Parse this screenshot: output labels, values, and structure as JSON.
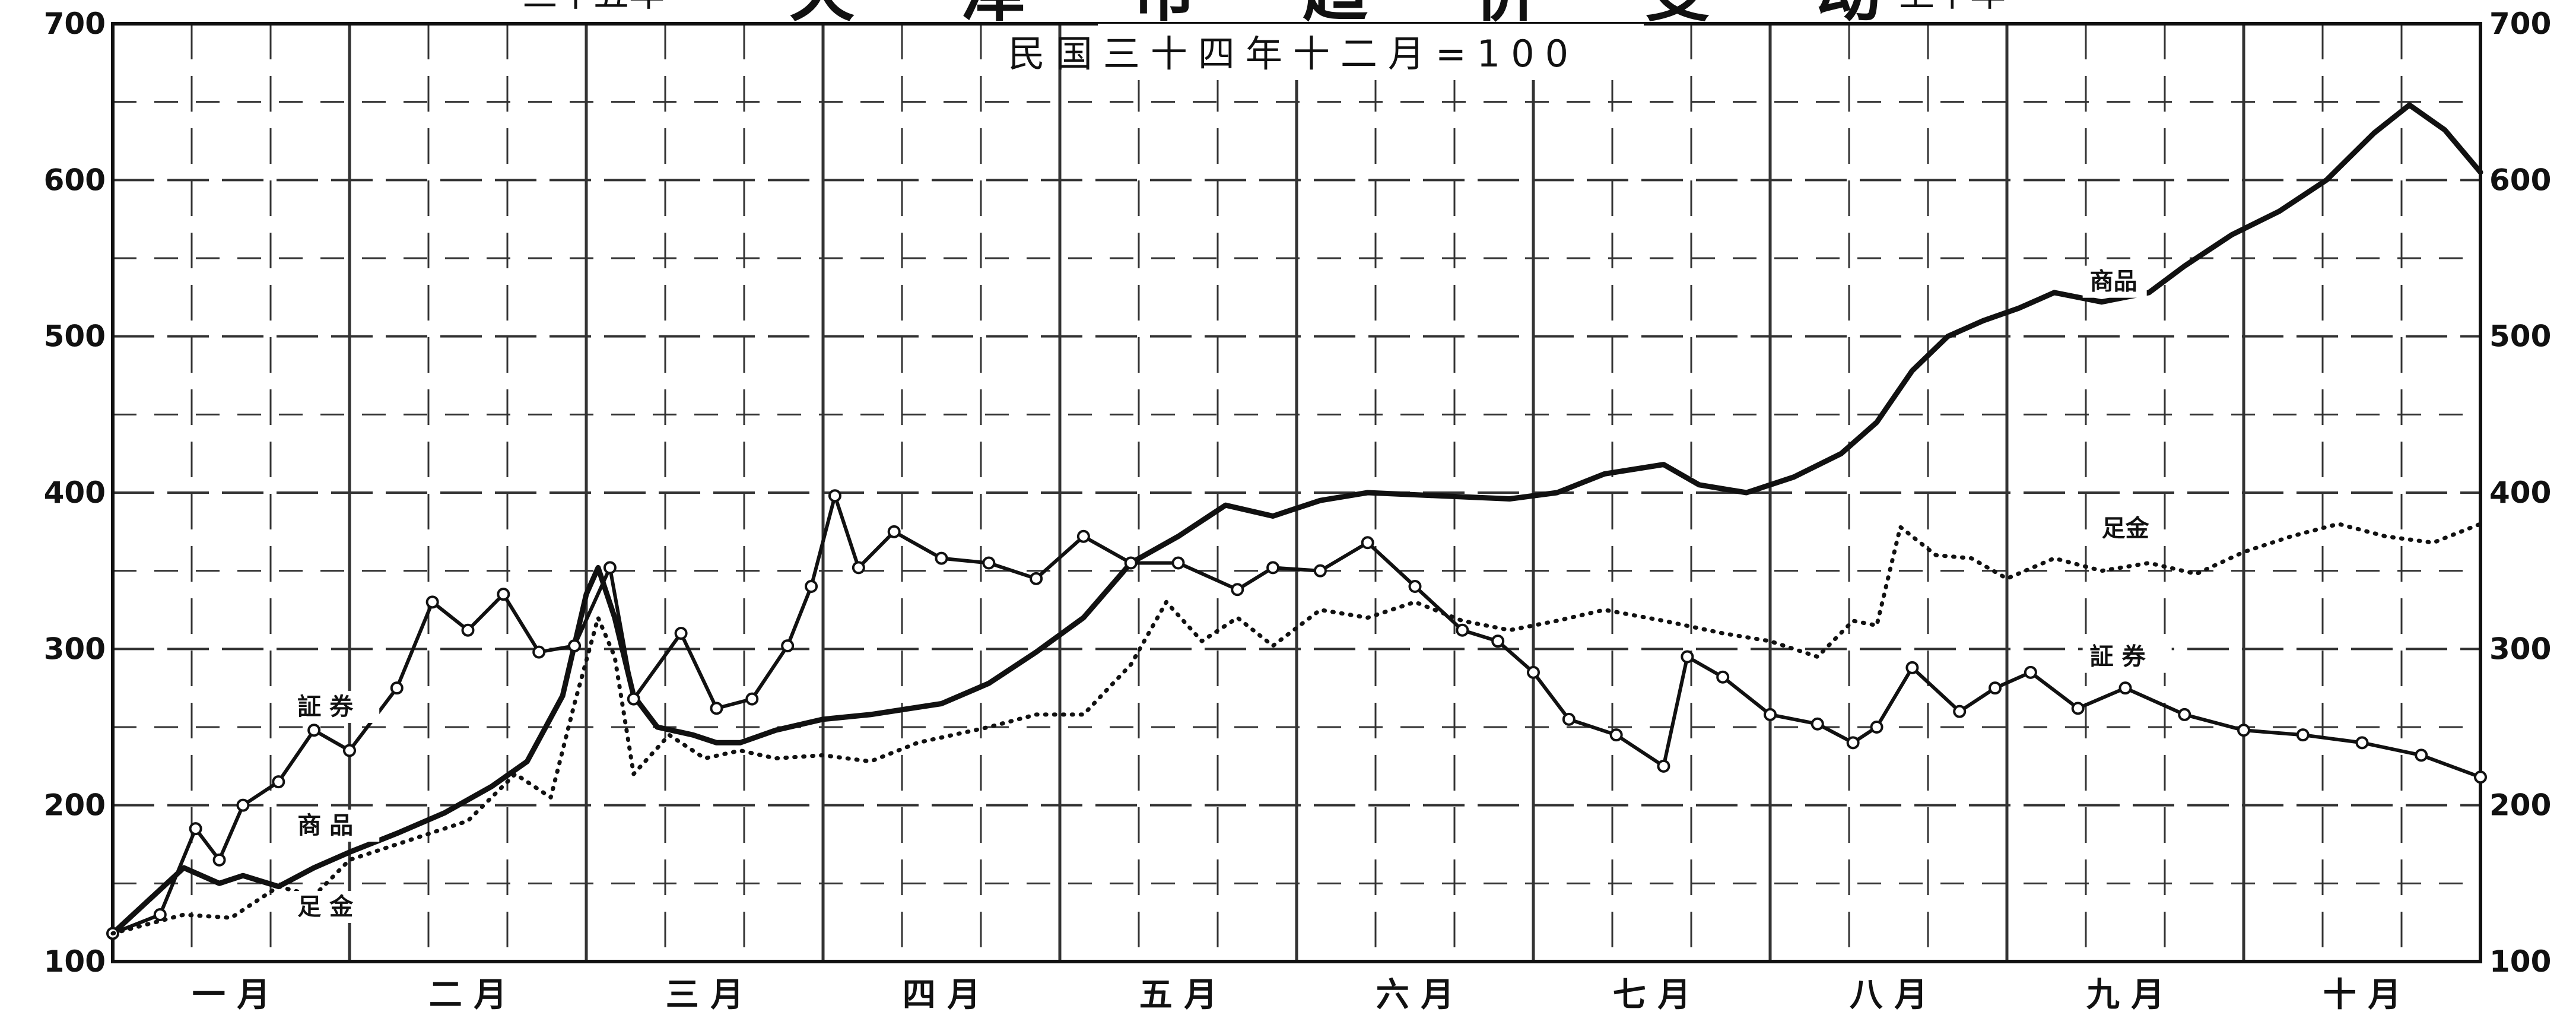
{
  "chart_data": {
    "type": "line",
    "title": {
      "prefix": "三十五年",
      "main": "天 津 市 趋 价 变 动",
      "suffix": "上半年"
    },
    "subtitle": "民国三十四年十二月=100",
    "ylim": [
      100,
      700
    ],
    "yticks": [
      "100",
      "200",
      "300",
      "400",
      "500",
      "600",
      "700"
    ],
    "xlim": [
      0,
      10
    ],
    "months": [
      "一 月",
      "二 月",
      "三 月",
      "四 月",
      "五 月",
      "六 月",
      "七 月",
      "八 月",
      "九 月",
      "十 月"
    ],
    "grid": true,
    "series": [
      {
        "name": "商品",
        "style": "solid",
        "x": [
          0,
          0.3,
          0.45,
          0.55,
          0.7,
          0.85,
          1.0,
          1.2,
          1.4,
          1.6,
          1.75,
          1.9,
          2.0,
          2.05,
          2.12,
          2.2,
          2.3,
          2.45,
          2.55,
          2.65,
          2.8,
          3.0,
          3.2,
          3.5,
          3.7,
          3.9,
          4.1,
          4.3,
          4.5,
          4.7,
          4.9,
          5.1,
          5.3,
          5.6,
          5.9,
          6.1,
          6.3,
          6.55,
          6.7,
          6.9,
          7.1,
          7.3,
          7.45,
          7.6,
          7.75,
          7.9,
          8.05,
          8.2,
          8.4,
          8.6,
          8.75,
          8.95,
          9.15,
          9.35,
          9.55,
          9.7,
          9.85,
          10.0
        ],
        "values": [
          118,
          160,
          150,
          155,
          148,
          160,
          170,
          182,
          195,
          212,
          228,
          270,
          335,
          352,
          320,
          270,
          250,
          245,
          240,
          240,
          248,
          255,
          258,
          265,
          278,
          298,
          320,
          355,
          372,
          392,
          385,
          395,
          400,
          398,
          396,
          400,
          412,
          418,
          405,
          400,
          410,
          425,
          445,
          478,
          500,
          510,
          518,
          528,
          522,
          528,
          545,
          565,
          580,
          600,
          630,
          648,
          632,
          605
        ]
      },
      {
        "name": "证券",
        "style": "solid-circles",
        "x": [
          0,
          0.2,
          0.35,
          0.45,
          0.55,
          0.7,
          0.85,
          1.0,
          1.2,
          1.35,
          1.5,
          1.65,
          1.8,
          1.95,
          2.1,
          2.2,
          2.4,
          2.55,
          2.7,
          2.85,
          2.95,
          3.05,
          3.15,
          3.3,
          3.5,
          3.7,
          3.9,
          4.1,
          4.3,
          4.5,
          4.75,
          4.9,
          5.1,
          5.3,
          5.5,
          5.7,
          5.85,
          6.0,
          6.15,
          6.35,
          6.55,
          6.65,
          6.8,
          7.0,
          7.2,
          7.35,
          7.45,
          7.6,
          7.8,
          7.95,
          8.1,
          8.3,
          8.5,
          8.75,
          9.0,
          9.25,
          9.5,
          9.75,
          10.0
        ],
        "values": [
          118,
          130,
          185,
          165,
          200,
          215,
          248,
          235,
          275,
          330,
          312,
          335,
          298,
          302,
          352,
          268,
          310,
          262,
          268,
          302,
          340,
          398,
          352,
          375,
          358,
          355,
          345,
          372,
          355,
          355,
          338,
          352,
          350,
          368,
          340,
          312,
          305,
          285,
          255,
          245,
          225,
          295,
          282,
          258,
          252,
          240,
          250,
          288,
          260,
          275,
          285,
          262,
          275,
          258,
          248,
          245,
          240,
          232,
          218
        ]
      },
      {
        "name": "足金",
        "style": "dotted",
        "x": [
          0,
          0.3,
          0.5,
          0.7,
          0.85,
          1.0,
          1.2,
          1.5,
          1.7,
          1.85,
          1.95,
          2.05,
          2.12,
          2.2,
          2.35,
          2.5,
          2.65,
          2.8,
          3.0,
          3.2,
          3.4,
          3.7,
          3.9,
          4.1,
          4.3,
          4.45,
          4.6,
          4.75,
          4.9,
          5.1,
          5.3,
          5.5,
          5.7,
          5.9,
          6.1,
          6.3,
          6.55,
          6.8,
          7.0,
          7.2,
          7.35,
          7.45,
          7.55,
          7.7,
          7.85,
          8.0,
          8.2,
          8.4,
          8.6,
          8.8,
          9.0,
          9.2,
          9.4,
          9.6,
          9.8,
          10.0
        ],
        "values": [
          118,
          130,
          128,
          148,
          142,
          165,
          175,
          190,
          220,
          205,
          265,
          320,
          295,
          220,
          245,
          230,
          235,
          230,
          232,
          228,
          240,
          250,
          258,
          258,
          290,
          330,
          305,
          320,
          302,
          325,
          320,
          330,
          318,
          312,
          318,
          325,
          318,
          310,
          305,
          295,
          318,
          315,
          378,
          360,
          358,
          345,
          358,
          350,
          355,
          348,
          362,
          372,
          380,
          372,
          368,
          380
        ]
      }
    ],
    "series_labels": [
      {
        "series": "商品",
        "text": "商 品",
        "x": 0.78,
        "y": 182
      },
      {
        "series": "证券",
        "text": "証 券",
        "x": 0.78,
        "y": 258
      },
      {
        "series": "足金",
        "text": "足 金",
        "x": 0.78,
        "y": 130
      },
      {
        "series": "商品",
        "text": "商品",
        "x": 8.35,
        "y": 530
      },
      {
        "series": "足金",
        "text": "足金",
        "x": 8.4,
        "y": 372
      },
      {
        "series": "证券",
        "text": "証 券",
        "x": 8.35,
        "y": 290
      }
    ],
    "colors": {
      "ink": "#111111",
      "grid": "#333333",
      "paper": "#ffffff"
    }
  }
}
